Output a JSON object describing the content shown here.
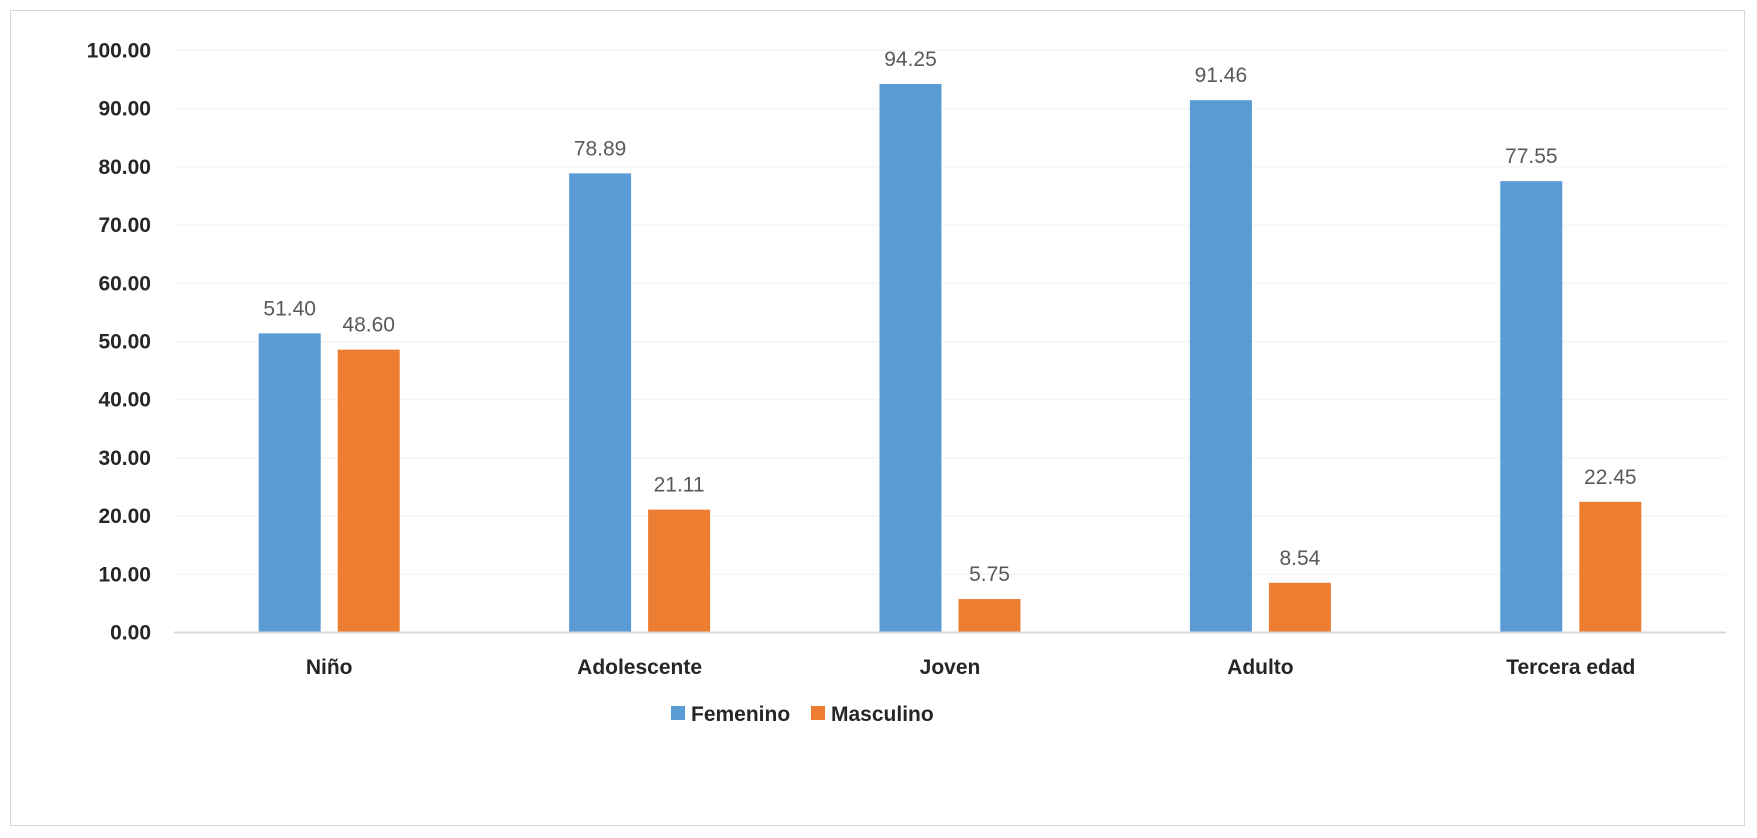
{
  "chart_data": {
    "type": "bar",
    "categories": [
      "Niño",
      "Adolescente",
      "Joven",
      "Adulto",
      "Tercera edad"
    ],
    "series": [
      {
        "name": "Femenino",
        "color": "#5b9bd5",
        "values": [
          51.4,
          78.89,
          94.25,
          91.46,
          77.55
        ]
      },
      {
        "name": "Masculino",
        "color": "#ed7d31",
        "values": [
          48.6,
          21.11,
          5.75,
          8.54,
          22.45
        ]
      }
    ],
    "data_labels": [
      [
        "51.40",
        "78.89",
        "94.25",
        "91.46",
        "77.55"
      ],
      [
        "48.60",
        "21.11",
        "5.75",
        "8.54",
        "22.45"
      ]
    ],
    "y_ticks": [
      "0.00",
      "10.00",
      "20.00",
      "30.00",
      "40.00",
      "50.00",
      "60.00",
      "70.00",
      "80.00",
      "90.00",
      "100.00"
    ],
    "ylim": [
      0,
      100
    ],
    "title": "",
    "xlabel": "",
    "ylabel": "",
    "grid": true,
    "legend_position": "bottom"
  }
}
